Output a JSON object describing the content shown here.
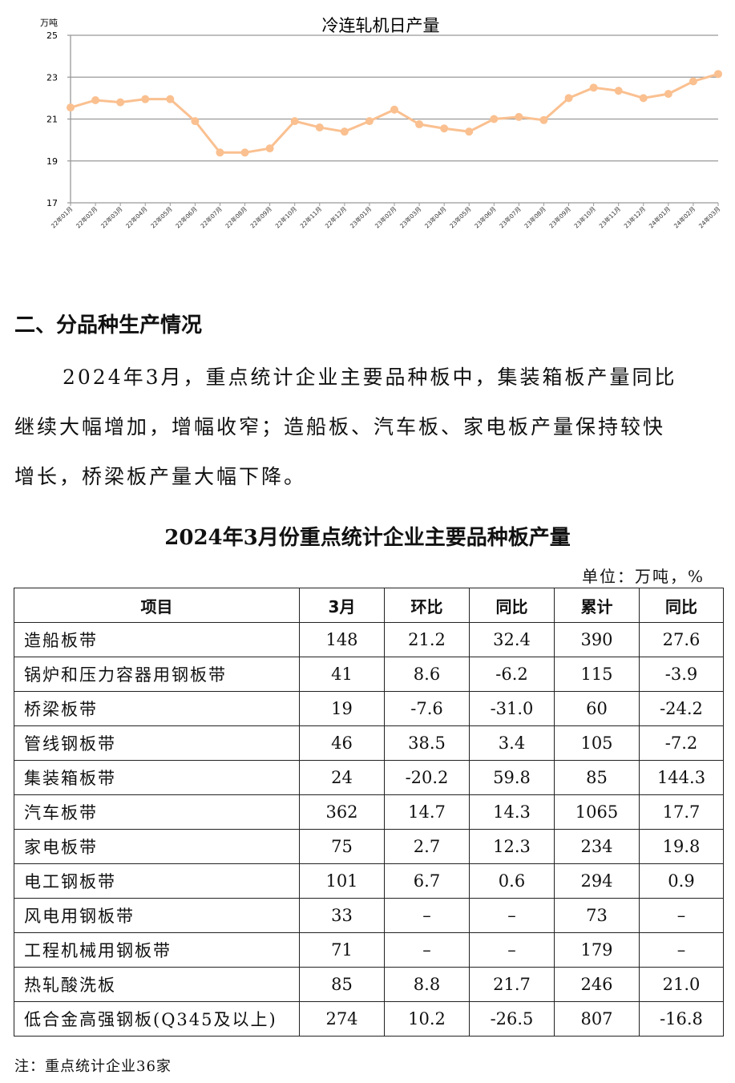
{
  "chart_data": {
    "type": "line",
    "title": "冷连轧机日产量",
    "ylabel": "万吨",
    "ylim": [
      17,
      25
    ],
    "yticks": [
      17,
      19,
      21,
      23,
      25
    ],
    "grid": true,
    "color": "#FAC090",
    "categories": [
      "22年01月",
      "22年02月",
      "22年03月",
      "22年04月",
      "22年05月",
      "22年06月",
      "22年07月",
      "22年08月",
      "22年09月",
      "22年10月",
      "22年11月",
      "22年12月",
      "23年01月",
      "23年02月",
      "23年03月",
      "23年04月",
      "23年05月",
      "23年06月",
      "23年07月",
      "23年08月",
      "23年09月",
      "23年10月",
      "23年11月",
      "23年12月",
      "24年01月",
      "24年02月",
      "24年03月"
    ],
    "values": [
      21.55,
      21.9,
      21.8,
      21.95,
      21.95,
      20.9,
      19.4,
      19.4,
      19.6,
      20.9,
      20.6,
      20.4,
      20.9,
      21.45,
      20.75,
      20.55,
      20.4,
      21.0,
      21.1,
      20.95,
      22.0,
      22.5,
      22.35,
      22.0,
      22.2,
      22.8,
      23.15
    ]
  },
  "section": {
    "heading": "二、分品种生产情况",
    "paragraph": [
      "2024年3月，重点统计企业主要品种板中，集装箱板产量同比",
      "继续大幅增加，增幅收窄；造船板、汽车板、家电板产量保持较快",
      "增长，桥梁板产量大幅下降。"
    ]
  },
  "table": {
    "title": "2024年3月份重点统计企业主要品种板产量",
    "unit": "单位：万吨，%",
    "headers": [
      "项目",
      "3月",
      "环比",
      "同比",
      "累计",
      "同比"
    ],
    "rows": [
      [
        "造船板带",
        "148",
        "21.2",
        "32.4",
        "390",
        "27.6"
      ],
      [
        "锅炉和压力容器用钢板带",
        "41",
        "8.6",
        "-6.2",
        "115",
        "-3.9"
      ],
      [
        "桥梁板带",
        "19",
        "-7.6",
        "-31.0",
        "60",
        "-24.2"
      ],
      [
        "管线钢板带",
        "46",
        "38.5",
        "3.4",
        "105",
        "-7.2"
      ],
      [
        "集装箱板带",
        "24",
        "-20.2",
        "59.8",
        "85",
        "144.3"
      ],
      [
        "汽车板带",
        "362",
        "14.7",
        "14.3",
        "1065",
        "17.7"
      ],
      [
        "家电板带",
        "75",
        "2.7",
        "12.3",
        "234",
        "19.8"
      ],
      [
        "电工钢板带",
        "101",
        "6.7",
        "0.6",
        "294",
        "0.9"
      ],
      [
        "风电用钢板带",
        "33",
        "–",
        "–",
        "73",
        "–"
      ],
      [
        "工程机械用钢板带",
        "71",
        "–",
        "–",
        "179",
        "–"
      ],
      [
        "热轧酸洗板",
        "85",
        "8.8",
        "21.7",
        "246",
        "21.0"
      ],
      [
        "低合金高强钢板(Q345及以上)",
        "274",
        "10.2",
        "-26.5",
        "807",
        "-16.8"
      ]
    ],
    "note": "注：重点统计企业36家"
  }
}
